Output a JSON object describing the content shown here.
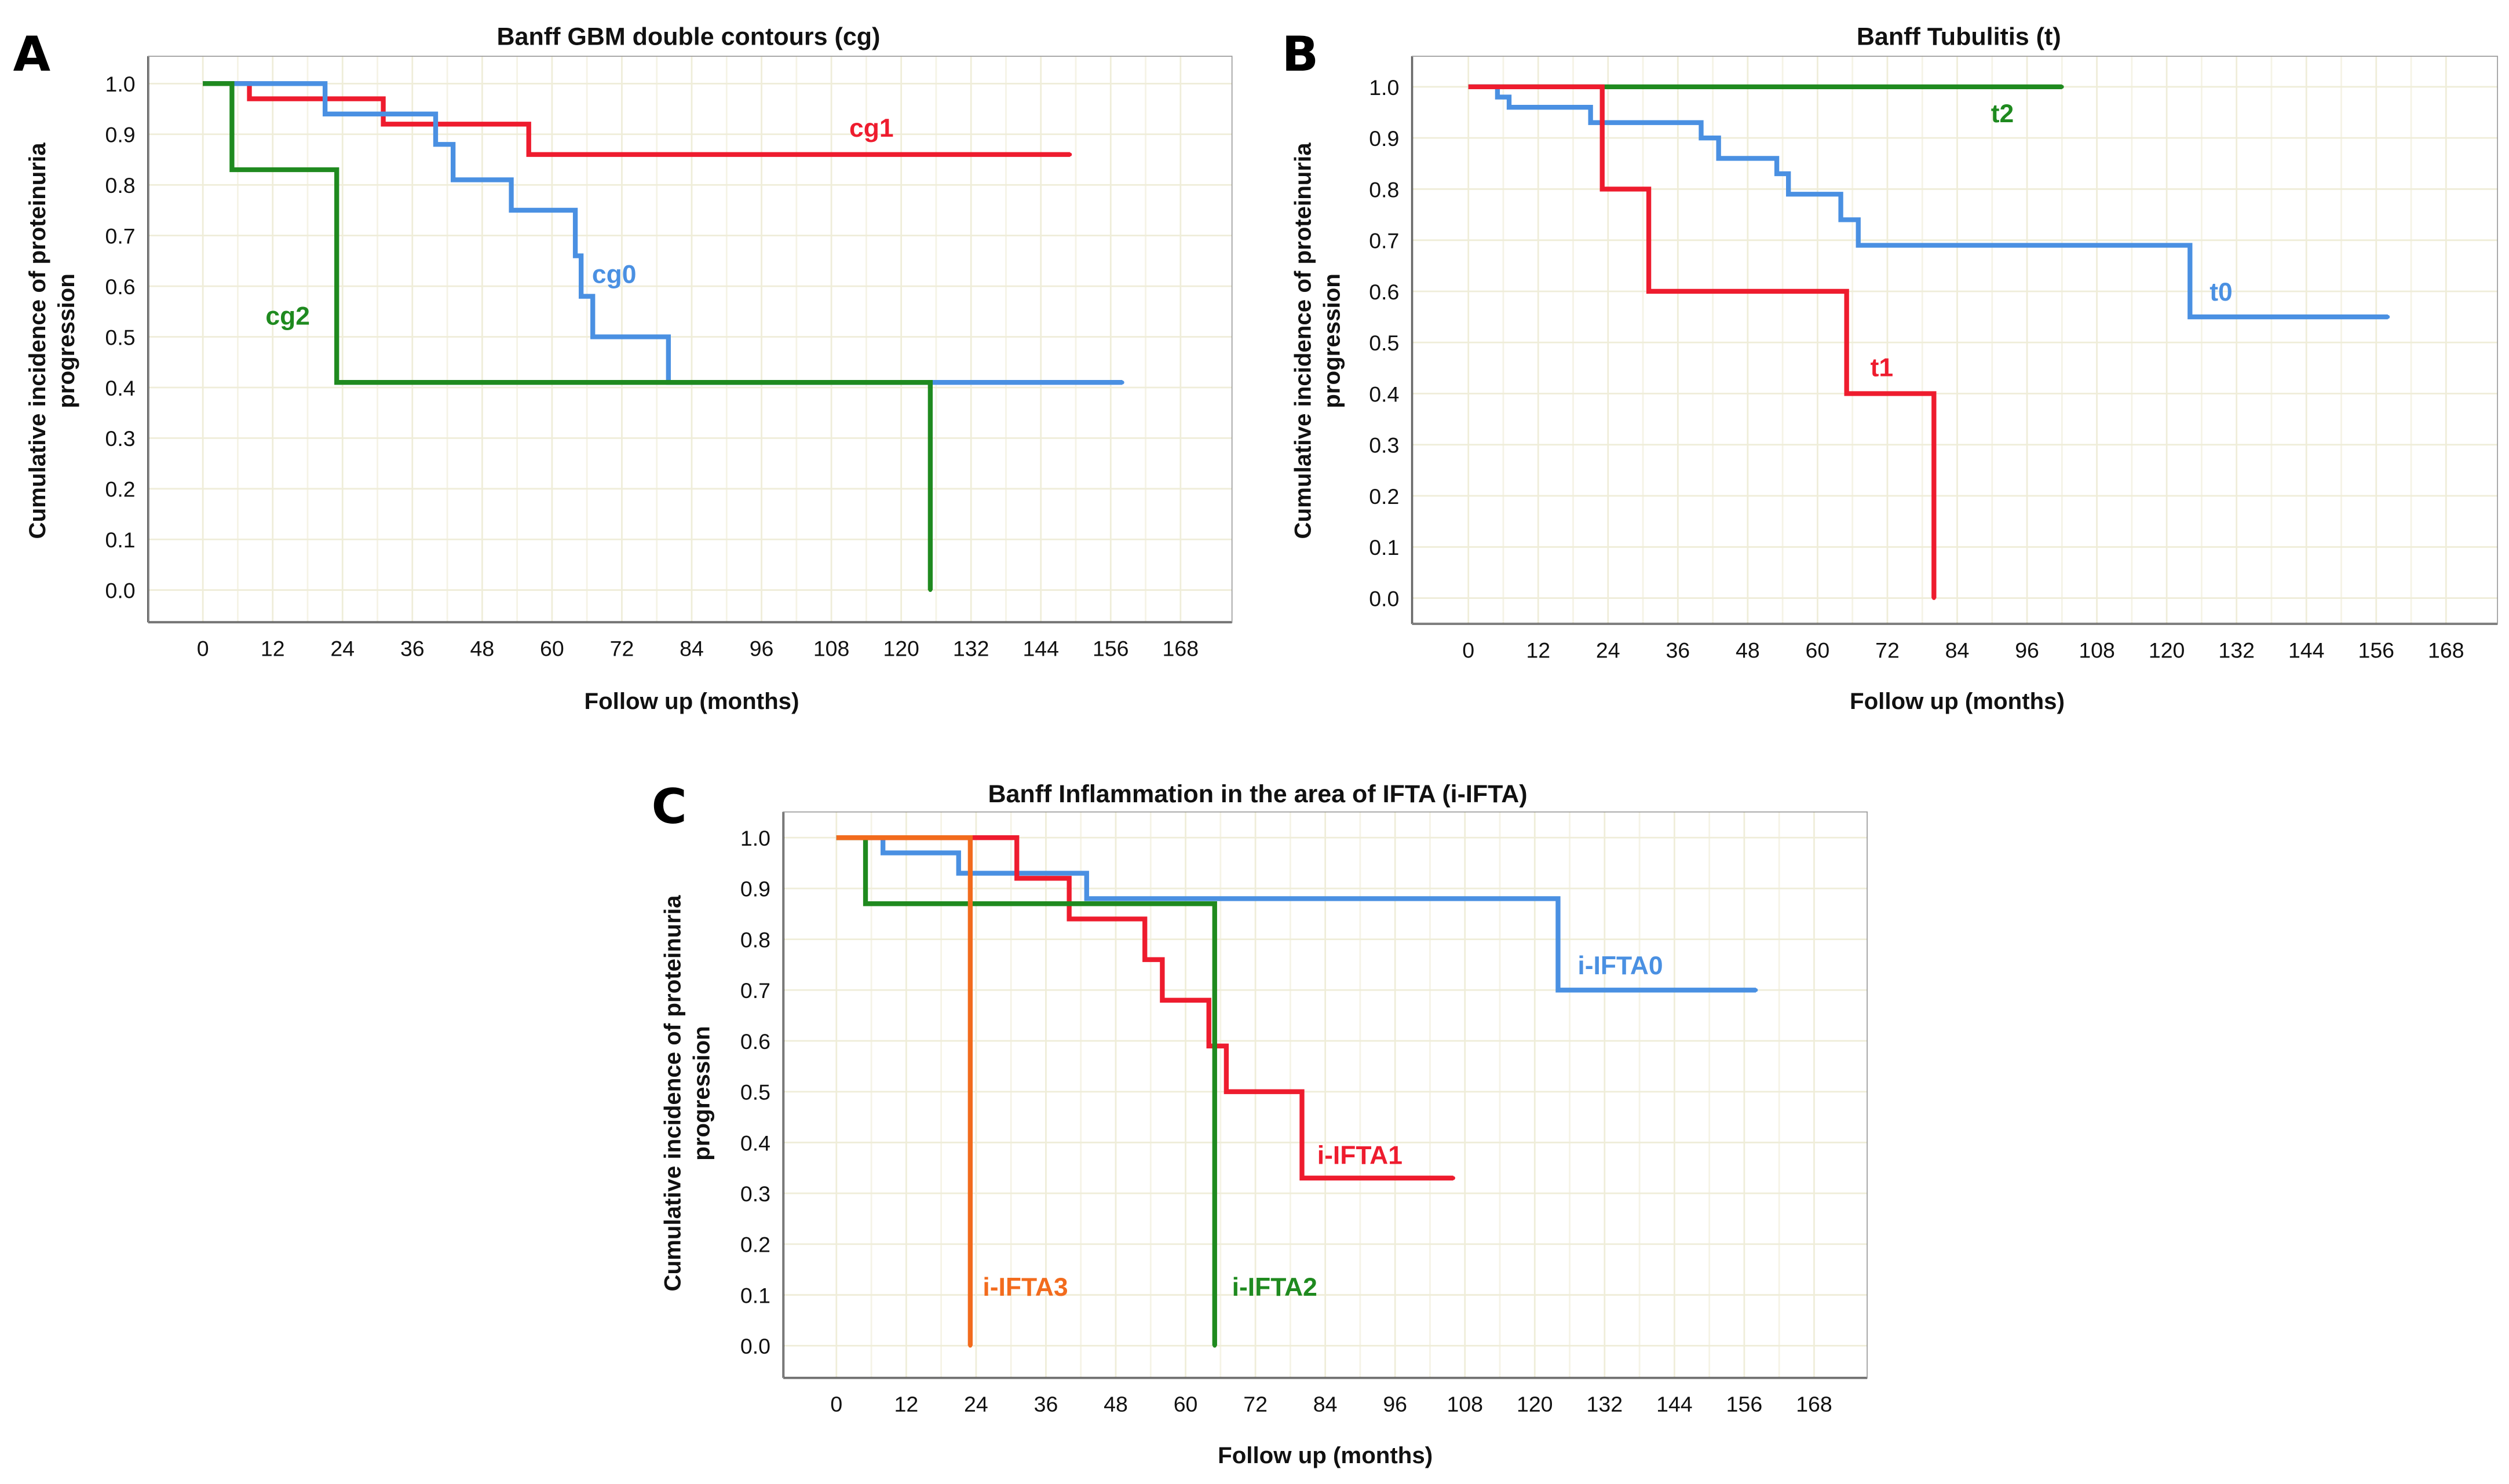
{
  "chart_data": [
    {
      "type": "line",
      "panel": "A",
      "title": "Banff GBM double contours (cg)",
      "xlabel": "Follow up (months)",
      "ylabel": [
        "Cumulative incidence of proteinuria",
        "progression"
      ],
      "xlim": [
        0,
        168
      ],
      "ylim": [
        0,
        1
      ],
      "xticks": [
        "0",
        "12",
        "24",
        "36",
        "48",
        "60",
        "72",
        "84",
        "96",
        "108",
        "120",
        "132",
        "144",
        "156",
        "168"
      ],
      "yticks": [
        "0.0",
        "0.1",
        "0.2",
        "0.3",
        "0.4",
        "0.5",
        "0.6",
        "0.7",
        "0.8",
        "0.9",
        "1.0"
      ],
      "grid": true,
      "series": [
        {
          "name": "cg1",
          "color": "#ee1c2e",
          "steps": [
            [
              0,
              1.0
            ],
            [
              8,
              0.97
            ],
            [
              31,
              0.92
            ],
            [
              56,
              0.86
            ]
          ],
          "end": 149
        },
        {
          "name": "cg0",
          "color": "#4a90e2",
          "steps": [
            [
              0,
              1.0
            ],
            [
              21,
              0.94
            ],
            [
              40,
              0.88
            ],
            [
              43,
              0.81
            ],
            [
              53,
              0.75
            ],
            [
              64,
              0.66
            ],
            [
              65,
              0.58
            ],
            [
              67,
              0.5
            ],
            [
              80,
              0.41
            ]
          ],
          "end": 158
        },
        {
          "name": "cg2",
          "color": "#1f8a1f",
          "steps": [
            [
              0,
              1.0
            ],
            [
              5,
              0.83
            ],
            [
              23,
              0.41
            ],
            [
              125,
              0.0
            ]
          ],
          "end": 125
        }
      ]
    },
    {
      "type": "line",
      "panel": "B",
      "title": "Banff Tubulitis (t)",
      "xlabel": "Follow up (months)",
      "ylabel": [
        "Cumulative incidence of proteinuria",
        "progression"
      ],
      "xlim": [
        0,
        168
      ],
      "ylim": [
        0,
        1
      ],
      "xticks": [
        "0",
        "12",
        "24",
        "36",
        "48",
        "60",
        "72",
        "84",
        "96",
        "108",
        "120",
        "132",
        "144",
        "156",
        "168"
      ],
      "yticks": [
        "0.0",
        "0.1",
        "0.2",
        "0.3",
        "0.4",
        "0.5",
        "0.6",
        "0.7",
        "0.8",
        "0.9",
        "1.0"
      ],
      "grid": true,
      "series": [
        {
          "name": "t2",
          "color": "#1f8a1f",
          "steps": [
            [
              0,
              1.0
            ]
          ],
          "end": 102
        },
        {
          "name": "t0",
          "color": "#4a90e2",
          "steps": [
            [
              0,
              1.0
            ],
            [
              5,
              0.98
            ],
            [
              7,
              0.96
            ],
            [
              21,
              0.93
            ],
            [
              40,
              0.9
            ],
            [
              43,
              0.86
            ],
            [
              53,
              0.83
            ],
            [
              55,
              0.79
            ],
            [
              64,
              0.74
            ],
            [
              67,
              0.69
            ],
            [
              124,
              0.55
            ]
          ],
          "end": 158
        },
        {
          "name": "t1",
          "color": "#ee1c2e",
          "steps": [
            [
              0,
              1.0
            ],
            [
              23,
              0.8
            ],
            [
              31,
              0.6
            ],
            [
              65,
              0.4
            ],
            [
              80,
              0.0
            ]
          ],
          "end": 80
        }
      ]
    },
    {
      "type": "line",
      "panel": "C",
      "title": "Banff Inflammation in the area of IFTA (i-IFTA)",
      "xlabel": "Follow up (months)",
      "ylabel": [
        "Cumulative incidence of proteinuria",
        "progression"
      ],
      "xlim": [
        0,
        168
      ],
      "ylim": [
        0,
        1
      ],
      "xticks": [
        "0",
        "12",
        "24",
        "36",
        "48",
        "60",
        "72",
        "84",
        "96",
        "108",
        "120",
        "132",
        "144",
        "156",
        "168"
      ],
      "yticks": [
        "0.0",
        "0.1",
        "0.2",
        "0.3",
        "0.4",
        "0.5",
        "0.6",
        "0.7",
        "0.8",
        "0.9",
        "1.0"
      ],
      "grid": true,
      "series": [
        {
          "name": "i-IFTA0",
          "color": "#4a90e2",
          "steps": [
            [
              0,
              1.0
            ],
            [
              8,
              0.97
            ],
            [
              21,
              0.93
            ],
            [
              43,
              0.88
            ],
            [
              124,
              0.7
            ]
          ],
          "end": 158
        },
        {
          "name": "i-IFTA1",
          "color": "#ee1c2e",
          "steps": [
            [
              0,
              1.0
            ],
            [
              31,
              0.92
            ],
            [
              40,
              0.84
            ],
            [
              53,
              0.76
            ],
            [
              56,
              0.68
            ],
            [
              64,
              0.59
            ],
            [
              67,
              0.5
            ],
            [
              80,
              0.33
            ]
          ],
          "end": 106
        },
        {
          "name": "i-IFTA2",
          "color": "#1f8a1f",
          "steps": [
            [
              0,
              1.0
            ],
            [
              5,
              0.87
            ],
            [
              65,
              0.0
            ]
          ],
          "end": 65
        },
        {
          "name": "i-IFTA3",
          "color": "#f26b1d",
          "steps": [
            [
              0,
              1.0
            ],
            [
              23,
              0.0
            ]
          ],
          "end": 23
        }
      ]
    }
  ]
}
